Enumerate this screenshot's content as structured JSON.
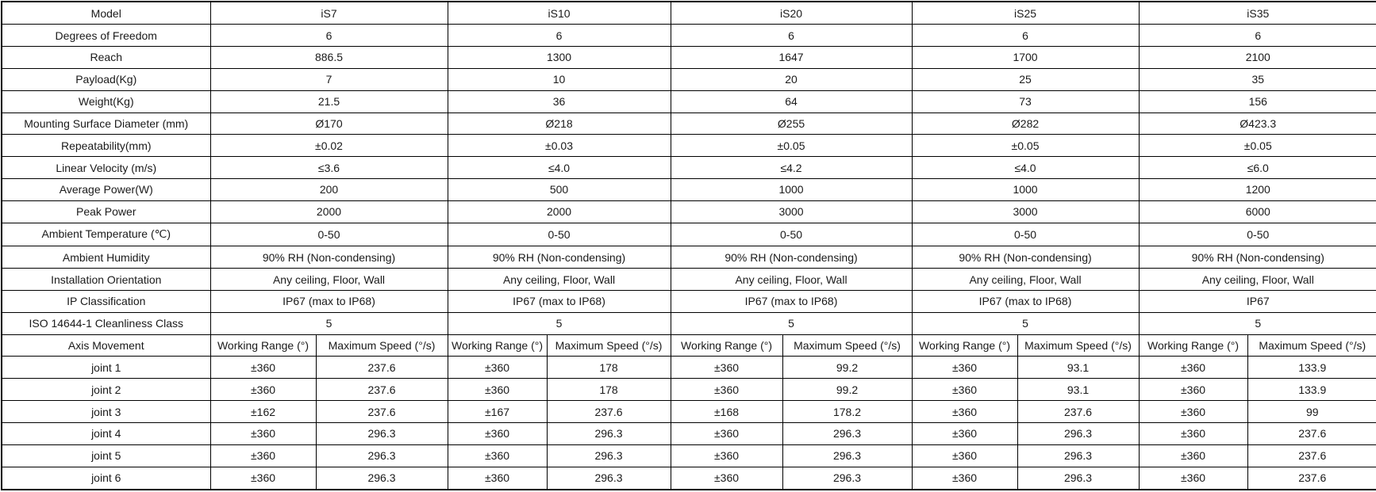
{
  "table": {
    "header": {
      "model_label": "Model",
      "models": [
        "iS7",
        "iS10",
        "iS20",
        "iS25",
        "iS35"
      ]
    },
    "spec_rows": [
      {
        "label": "Degrees of Freedom",
        "values": [
          "6",
          "6",
          "6",
          "6",
          "6"
        ]
      },
      {
        "label": "Reach",
        "values": [
          "886.5",
          "1300",
          "1647",
          "1700",
          "2100"
        ]
      },
      {
        "label": "Payload(Kg)",
        "values": [
          "7",
          "10",
          "20",
          "25",
          "35"
        ]
      },
      {
        "label": "Weight(Kg)",
        "values": [
          "21.5",
          "36",
          "64",
          "73",
          "156"
        ]
      },
      {
        "label": "Mounting Surface Diameter (mm)",
        "values": [
          "Ø170",
          "Ø218",
          "Ø255",
          "Ø282",
          "Ø423.3"
        ]
      },
      {
        "label": "Repeatability(mm)",
        "values": [
          "±0.02",
          "±0.03",
          "±0.05",
          "±0.05",
          "±0.05"
        ]
      },
      {
        "label": "Linear Velocity (m/s)",
        "values": [
          "≤3.6",
          "≤4.0",
          "≤4.2",
          "≤4.0",
          "≤6.0"
        ]
      },
      {
        "label": "Average Power(W)",
        "values": [
          "200",
          "500",
          "1000",
          "1000",
          "1200"
        ]
      },
      {
        "label": "Peak Power",
        "values": [
          "2000",
          "2000",
          "3000",
          "3000",
          "6000"
        ]
      },
      {
        "label": "Ambient Temperature (℃)",
        "values": [
          "0-50",
          "0-50",
          "0-50",
          "0-50",
          "0-50"
        ]
      },
      {
        "label": "Ambient Humidity",
        "values": [
          "90% RH (Non-condensing)",
          "90% RH (Non-condensing)",
          "90% RH (Non-condensing)",
          "90% RH (Non-condensing)",
          "90% RH (Non-condensing)"
        ]
      },
      {
        "label": "Installation Orientation",
        "values": [
          "Any ceiling, Floor, Wall",
          "Any ceiling, Floor, Wall",
          "Any ceiling, Floor, Wall",
          "Any ceiling, Floor, Wall",
          "Any ceiling, Floor, Wall"
        ]
      },
      {
        "label": "IP Classification",
        "values": [
          "IP67 (max to IP68)",
          "IP67 (max to IP68)",
          "IP67 (max to IP68)",
          "IP67 (max to IP68)",
          "IP67"
        ]
      },
      {
        "label": "ISO 14644-1 Cleanliness Class",
        "values": [
          "5",
          "5",
          "5",
          "5",
          "5"
        ]
      }
    ],
    "axis_section": {
      "title": "Axis Movement",
      "working_range_label": "Working Range (°)",
      "max_speed_label": "Maximum Speed (°/s)",
      "joints": [
        {
          "label": "joint 1",
          "values": [
            [
              "±360",
              "237.6"
            ],
            [
              "±360",
              "178"
            ],
            [
              "±360",
              "99.2"
            ],
            [
              "±360",
              "93.1"
            ],
            [
              "±360",
              "133.9"
            ]
          ]
        },
        {
          "label": "joint 2",
          "values": [
            [
              "±360",
              "237.6"
            ],
            [
              "±360",
              "178"
            ],
            [
              "±360",
              "99.2"
            ],
            [
              "±360",
              "93.1"
            ],
            [
              "±360",
              "133.9"
            ]
          ]
        },
        {
          "label": "joint 3",
          "values": [
            [
              "±162",
              "237.6"
            ],
            [
              "±167",
              "237.6"
            ],
            [
              "±168",
              "178.2"
            ],
            [
              "±360",
              "237.6"
            ],
            [
              "±360",
              "99"
            ]
          ]
        },
        {
          "label": "joint 4",
          "values": [
            [
              "±360",
              "296.3"
            ],
            [
              "±360",
              "296.3"
            ],
            [
              "±360",
              "296.3"
            ],
            [
              "±360",
              "296.3"
            ],
            [
              "±360",
              "237.6"
            ]
          ]
        },
        {
          "label": "joint 5",
          "values": [
            [
              "±360",
              "296.3"
            ],
            [
              "±360",
              "296.3"
            ],
            [
              "±360",
              "296.3"
            ],
            [
              "±360",
              "296.3"
            ],
            [
              "±360",
              "237.6"
            ]
          ]
        },
        {
          "label": "joint 6",
          "values": [
            [
              "±360",
              "296.3"
            ],
            [
              "±360",
              "296.3"
            ],
            [
              "±360",
              "296.3"
            ],
            [
              "±360",
              "296.3"
            ],
            [
              "±360",
              "237.6"
            ]
          ]
        }
      ]
    },
    "colors": {
      "axis_title_orange": "#ed7d31",
      "sub_header_red": "#fe2323",
      "joint_label_gray": "#595959",
      "border_black": "#000000"
    }
  }
}
